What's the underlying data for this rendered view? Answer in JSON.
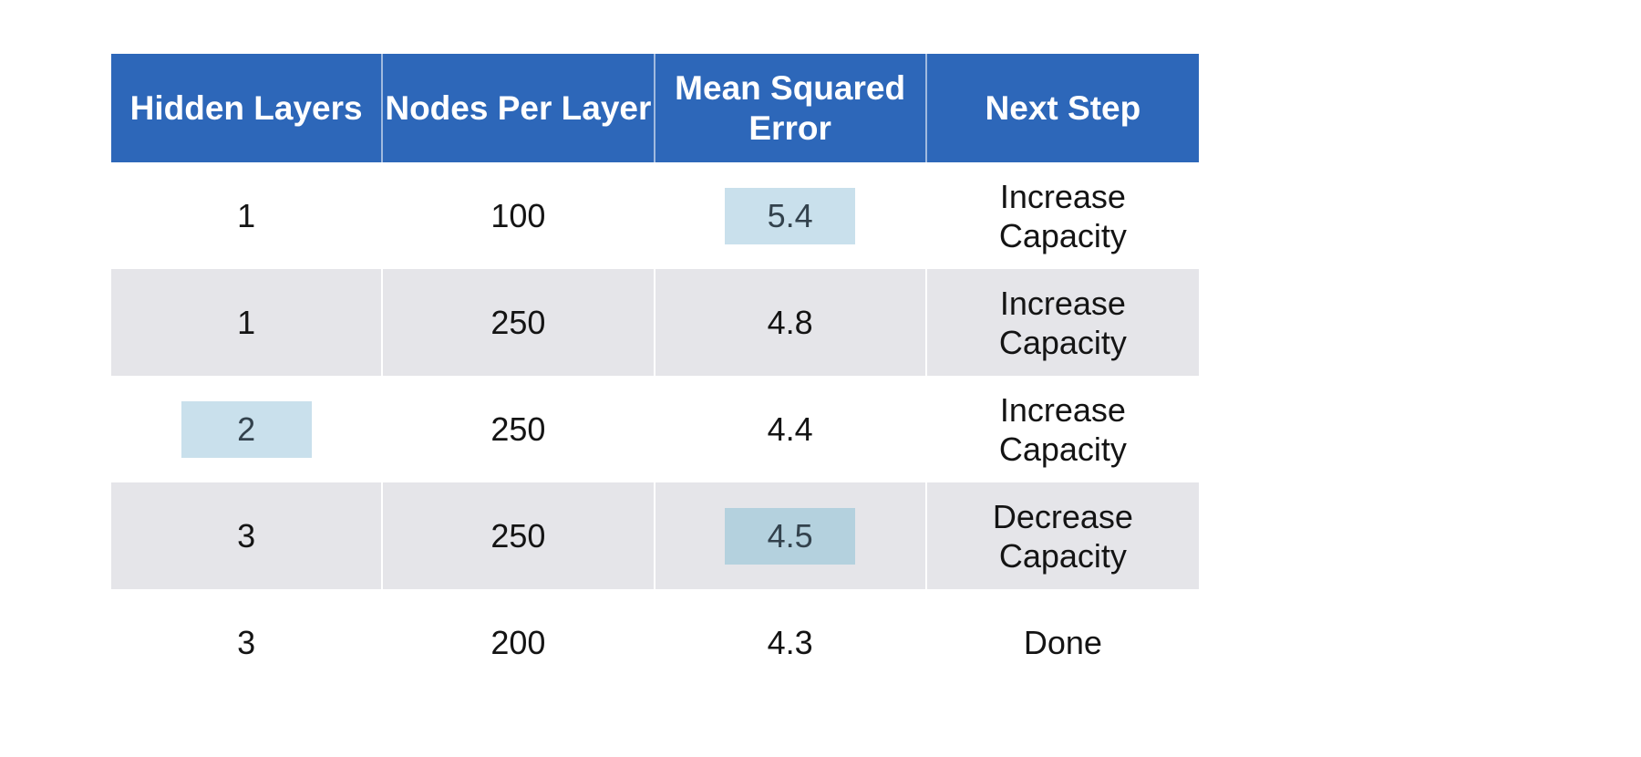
{
  "table": {
    "header": {
      "columns": [
        "Hidden Layers",
        "Nodes Per Layer",
        "Mean Squared\nError",
        "Next Step"
      ],
      "bg_color": "#2d67b9",
      "text_color": "#ffffff"
    },
    "rows": [
      {
        "cells": [
          "1",
          "100",
          "5.4",
          "Increase\nCapacity"
        ]
      },
      {
        "cells": [
          "1",
          "250",
          "4.8",
          "Increase\nCapacity"
        ]
      },
      {
        "cells": [
          "2",
          "250",
          "4.4",
          "Increase\nCapacity"
        ]
      },
      {
        "cells": [
          "3",
          "250",
          "4.5",
          "Decrease\nCapacity"
        ]
      },
      {
        "cells": [
          "3",
          "200",
          "4.3",
          "Done"
        ]
      }
    ],
    "zebra_row_color": "#e5e5e9",
    "highlighted_cells": [
      {
        "row": 0,
        "col": 2,
        "value": "5.4",
        "color": "#c9e0ec"
      },
      {
        "row": 2,
        "col": 0,
        "value": "2",
        "color": "#c9e0ec"
      },
      {
        "row": 3,
        "col": 2,
        "value": "4.5",
        "color": "#b4d1de"
      }
    ],
    "highlight_text_color": "#33424d"
  }
}
